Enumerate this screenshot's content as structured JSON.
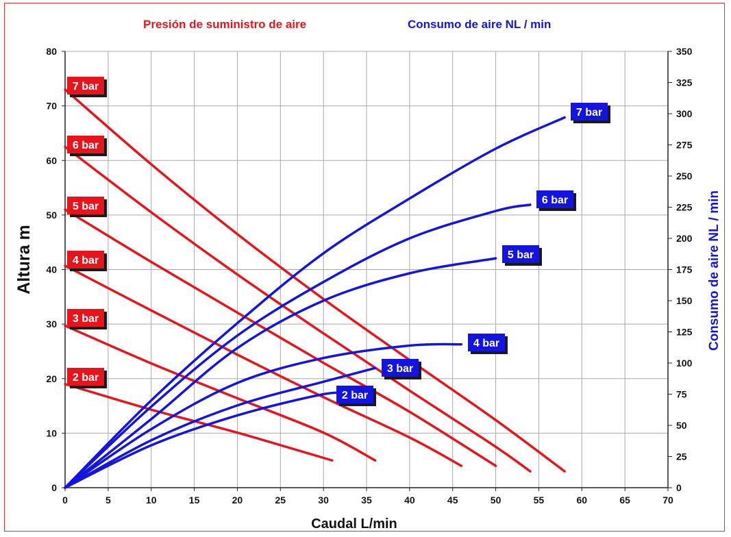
{
  "chart_data": {
    "type": "line",
    "legend": {
      "pressure_title": "Presión de suministro de aire",
      "consumption_title": "Consumo de aire NL / min"
    },
    "xlabel": "Caudal L/min",
    "ylabel": "Altura m",
    "y2label": "Consumo de aire NL / min",
    "xlim": [
      0,
      70
    ],
    "ylim": [
      0,
      80
    ],
    "y2lim": [
      0,
      350
    ],
    "x_ticks": [
      "0",
      "5",
      "10",
      "15",
      "20",
      "25",
      "30",
      "35",
      "40",
      "45",
      "50",
      "55",
      "60",
      "65",
      "70"
    ],
    "y_ticks": [
      "0",
      "10",
      "20",
      "30",
      "40",
      "50",
      "60",
      "70",
      "80"
    ],
    "y2_ticks": [
      "0",
      "25",
      "50",
      "75",
      "100",
      "125",
      "150",
      "175",
      "200",
      "225",
      "250",
      "275",
      "300",
      "325",
      "350"
    ],
    "grid": true,
    "colors": {
      "pressure": "#e8141c",
      "consumption": "#1414e0"
    },
    "pressure_series": [
      {
        "name": "7 bar",
        "axis": "left",
        "points": [
          [
            0,
            73
          ],
          [
            10,
            59.3
          ],
          [
            20,
            46.5
          ],
          [
            30,
            34.6
          ],
          [
            40,
            23.4
          ],
          [
            50,
            12.4
          ],
          [
            58,
            3
          ]
        ]
      },
      {
        "name": "6 bar",
        "axis": "left",
        "points": [
          [
            0,
            62.5
          ],
          [
            10,
            50.5
          ],
          [
            20,
            39.1
          ],
          [
            30,
            28.3
          ],
          [
            40,
            17.8
          ],
          [
            50,
            7.5
          ],
          [
            54,
            3
          ]
        ]
      },
      {
        "name": "5 bar",
        "axis": "left",
        "points": [
          [
            0,
            51
          ],
          [
            10,
            41.4
          ],
          [
            20,
            32.1
          ],
          [
            30,
            22.9
          ],
          [
            40,
            13.9
          ],
          [
            50,
            4
          ]
        ]
      },
      {
        "name": "4 bar",
        "axis": "left",
        "points": [
          [
            0,
            40.7
          ],
          [
            10,
            32.5
          ],
          [
            20,
            24.4
          ],
          [
            30,
            16.6
          ],
          [
            40,
            9.2
          ],
          [
            46,
            4
          ]
        ]
      },
      {
        "name": "3 bar",
        "axis": "left",
        "points": [
          [
            0,
            29.7
          ],
          [
            10,
            22.8
          ],
          [
            20,
            16.4
          ],
          [
            30,
            10.1
          ],
          [
            36,
            5
          ]
        ]
      },
      {
        "name": "2 bar",
        "axis": "left",
        "points": [
          [
            0,
            19
          ],
          [
            10,
            14.3
          ],
          [
            20,
            10.1
          ],
          [
            31,
            5
          ]
        ]
      }
    ],
    "consumption_series": [
      {
        "name": "7 bar",
        "axis": "right",
        "points": [
          [
            0,
            0
          ],
          [
            10,
            70
          ],
          [
            20,
            132
          ],
          [
            30,
            188
          ],
          [
            40,
            232
          ],
          [
            50,
            272
          ],
          [
            58,
            297
          ]
        ]
      },
      {
        "name": "6 bar",
        "axis": "right",
        "points": [
          [
            0,
            0
          ],
          [
            10,
            65
          ],
          [
            20,
            122
          ],
          [
            30,
            165
          ],
          [
            40,
            200
          ],
          [
            50,
            222
          ],
          [
            54,
            227
          ]
        ]
      },
      {
        "name": "5 bar",
        "axis": "right",
        "points": [
          [
            0,
            0
          ],
          [
            10,
            55
          ],
          [
            20,
            112
          ],
          [
            30,
            150
          ],
          [
            40,
            172
          ],
          [
            50,
            184
          ]
        ]
      },
      {
        "name": "4 bar",
        "axis": "right",
        "points": [
          [
            0,
            0
          ],
          [
            10,
            47
          ],
          [
            20,
            84
          ],
          [
            30,
            104
          ],
          [
            40,
            114
          ],
          [
            46,
            115
          ]
        ]
      },
      {
        "name": "3 bar",
        "axis": "right",
        "points": [
          [
            0,
            0
          ],
          [
            10,
            38
          ],
          [
            20,
            66
          ],
          [
            30,
            85
          ],
          [
            36,
            96
          ]
        ]
      },
      {
        "name": "2 bar",
        "axis": "right",
        "points": [
          [
            0,
            0
          ],
          [
            10,
            34
          ],
          [
            20,
            58
          ],
          [
            30,
            75
          ],
          [
            33,
            75
          ]
        ]
      }
    ]
  }
}
